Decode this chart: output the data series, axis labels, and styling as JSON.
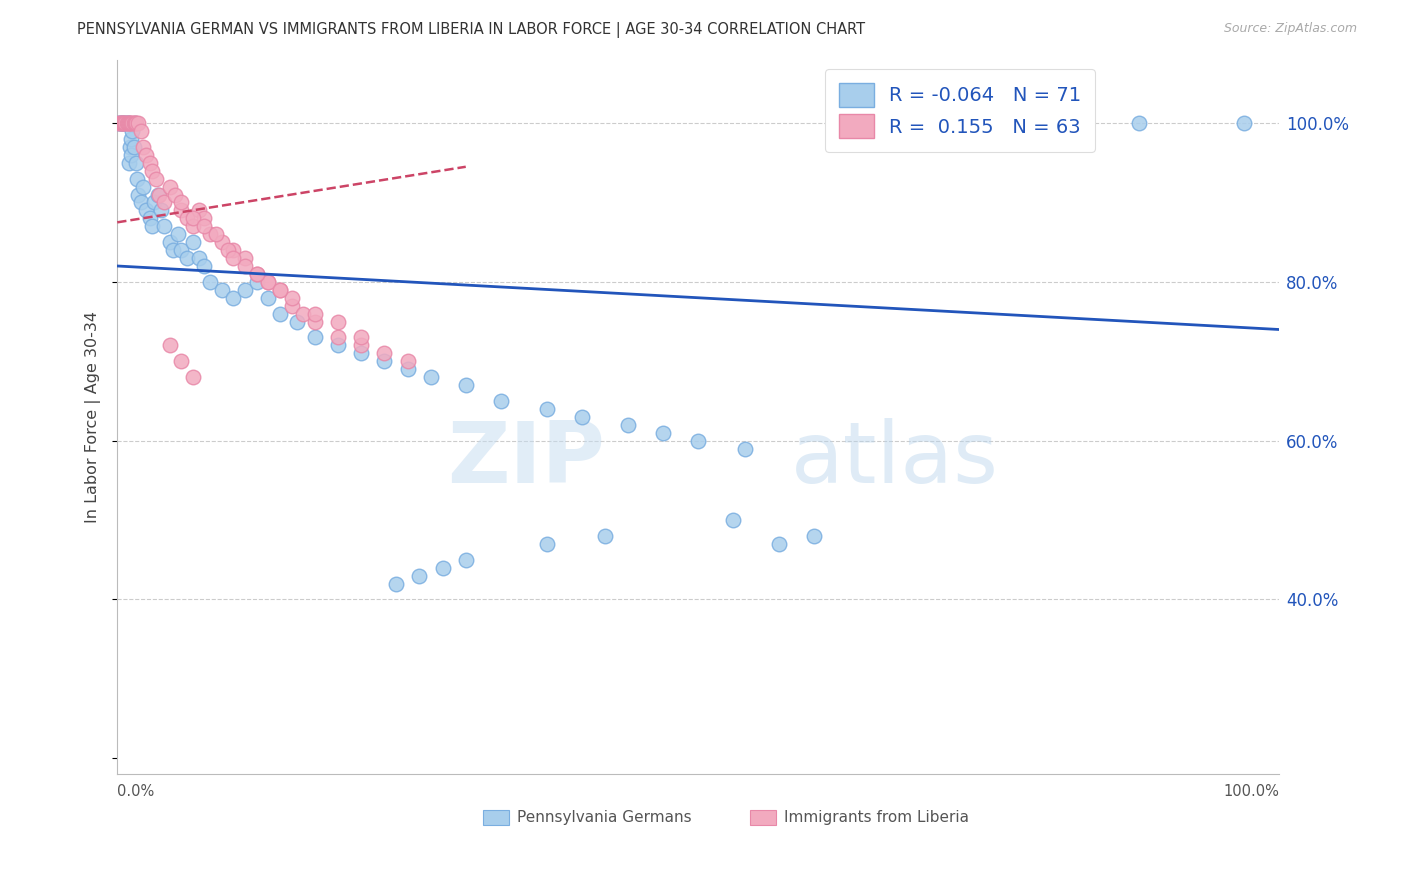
{
  "title": "PENNSYLVANIA GERMAN VS IMMIGRANTS FROM LIBERIA IN LABOR FORCE | AGE 30-34 CORRELATION CHART",
  "source": "Source: ZipAtlas.com",
  "ylabel": "In Labor Force | Age 30-34",
  "watermark_zip": "ZIP",
  "watermark_atlas": "atlas",
  "legend_blue_R": "-0.064",
  "legend_blue_N": "71",
  "legend_pink_R": "0.155",
  "legend_pink_N": "63",
  "blue_fill": "#A8CEEC",
  "blue_edge": "#7AAEE0",
  "pink_fill": "#F2AABF",
  "pink_edge": "#E888A8",
  "blue_line_color": "#2255BB",
  "pink_line_color": "#CC4466",
  "ytick_labels": [
    "40.0%",
    "60.0%",
    "80.0%",
    "100.0%"
  ],
  "ytick_values": [
    0.4,
    0.6,
    0.8,
    1.0
  ],
  "xmin": 0.0,
  "xmax": 1.0,
  "ymin": 0.18,
  "ymax": 1.08,
  "blue_line_x0": 0.0,
  "blue_line_x1": 1.0,
  "blue_line_y0": 0.82,
  "blue_line_y1": 0.74,
  "pink_line_x0": 0.0,
  "pink_line_x1": 0.3,
  "pink_line_y0": 0.875,
  "pink_line_y1": 0.945,
  "blue_x": [
    0.001,
    0.002,
    0.003,
    0.004,
    0.005,
    0.006,
    0.007,
    0.008,
    0.009,
    0.01,
    0.01,
    0.011,
    0.012,
    0.012,
    0.013,
    0.014,
    0.015,
    0.016,
    0.017,
    0.018,
    0.02,
    0.022,
    0.025,
    0.028,
    0.03,
    0.032,
    0.035,
    0.038,
    0.04,
    0.045,
    0.048,
    0.052,
    0.055,
    0.06,
    0.065,
    0.07,
    0.075,
    0.08,
    0.09,
    0.1,
    0.11,
    0.12,
    0.13,
    0.14,
    0.155,
    0.17,
    0.19,
    0.21,
    0.23,
    0.25,
    0.27,
    0.3,
    0.33,
    0.37,
    0.4,
    0.44,
    0.47,
    0.5,
    0.54,
    0.57,
    0.6,
    0.53,
    0.42,
    0.37,
    0.3,
    0.28,
    0.26,
    0.24,
    0.74,
    0.88,
    0.97
  ],
  "blue_y": [
    1.0,
    1.0,
    1.0,
    1.0,
    1.0,
    1.0,
    1.0,
    1.0,
    1.0,
    1.0,
    0.95,
    0.97,
    0.98,
    0.96,
    0.99,
    0.97,
    1.0,
    0.95,
    0.93,
    0.91,
    0.9,
    0.92,
    0.89,
    0.88,
    0.87,
    0.9,
    0.91,
    0.89,
    0.87,
    0.85,
    0.84,
    0.86,
    0.84,
    0.83,
    0.85,
    0.83,
    0.82,
    0.8,
    0.79,
    0.78,
    0.79,
    0.8,
    0.78,
    0.76,
    0.75,
    0.73,
    0.72,
    0.71,
    0.7,
    0.69,
    0.68,
    0.67,
    0.65,
    0.64,
    0.63,
    0.62,
    0.61,
    0.6,
    0.59,
    0.47,
    0.48,
    0.5,
    0.48,
    0.47,
    0.45,
    0.44,
    0.43,
    0.42,
    1.0,
    1.0,
    1.0
  ],
  "pink_x": [
    0.001,
    0.002,
    0.003,
    0.004,
    0.005,
    0.006,
    0.007,
    0.008,
    0.009,
    0.01,
    0.011,
    0.012,
    0.013,
    0.014,
    0.015,
    0.016,
    0.018,
    0.02,
    0.022,
    0.025,
    0.028,
    0.03,
    0.033,
    0.036,
    0.04,
    0.045,
    0.05,
    0.055,
    0.06,
    0.065,
    0.07,
    0.075,
    0.08,
    0.09,
    0.1,
    0.11,
    0.12,
    0.13,
    0.14,
    0.15,
    0.16,
    0.17,
    0.19,
    0.21,
    0.055,
    0.065,
    0.075,
    0.085,
    0.095,
    0.11,
    0.13,
    0.15,
    0.17,
    0.19,
    0.21,
    0.23,
    0.25,
    0.1,
    0.12,
    0.14,
    0.045,
    0.055,
    0.065
  ],
  "pink_y": [
    1.0,
    1.0,
    1.0,
    1.0,
    1.0,
    1.0,
    1.0,
    1.0,
    1.0,
    1.0,
    1.0,
    1.0,
    1.0,
    1.0,
    1.0,
    1.0,
    1.0,
    0.99,
    0.97,
    0.96,
    0.95,
    0.94,
    0.93,
    0.91,
    0.9,
    0.92,
    0.91,
    0.89,
    0.88,
    0.87,
    0.89,
    0.88,
    0.86,
    0.85,
    0.84,
    0.83,
    0.81,
    0.8,
    0.79,
    0.77,
    0.76,
    0.75,
    0.73,
    0.72,
    0.9,
    0.88,
    0.87,
    0.86,
    0.84,
    0.82,
    0.8,
    0.78,
    0.76,
    0.75,
    0.73,
    0.71,
    0.7,
    0.83,
    0.81,
    0.79,
    0.72,
    0.7,
    0.68
  ]
}
